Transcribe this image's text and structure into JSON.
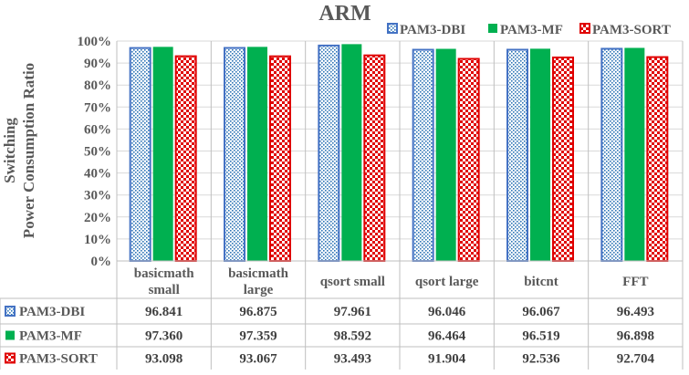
{
  "chart_data": {
    "type": "bar",
    "title": "ARM",
    "ylabel_lines": [
      "Switching",
      "Power Consumption Ratio"
    ],
    "ylim": [
      0,
      100
    ],
    "ytick_step": 10,
    "ytick_suffix": "%",
    "grid": true,
    "legend_position": "top-right",
    "categories": [
      {
        "line1": "basicmath",
        "line2": "small"
      },
      {
        "line1": "basicmath",
        "line2": "large"
      },
      {
        "line1": "qsort small",
        "line2": ""
      },
      {
        "line1": "qsort large",
        "line2": ""
      },
      {
        "line1": "bitcnt",
        "line2": ""
      },
      {
        "line1": "FFT",
        "line2": ""
      }
    ],
    "series": [
      {
        "name": "PAM3-DBI",
        "pattern": "dots",
        "color": "#4472c4",
        "fill": "#2e75b6",
        "values": [
          96.841,
          96.875,
          97.961,
          96.046,
          96.067,
          96.493
        ],
        "labels": [
          "96.841",
          "96.875",
          "97.961",
          "96.046",
          "96.067",
          "96.493"
        ]
      },
      {
        "name": "PAM3-MF",
        "pattern": "solid",
        "color": "#00b050",
        "fill": "#00b050",
        "values": [
          97.36,
          97.359,
          98.592,
          96.464,
          96.519,
          96.898
        ],
        "labels": [
          "97.360",
          "97.359",
          "98.592",
          "96.464",
          "96.519",
          "96.898"
        ]
      },
      {
        "name": "PAM3-SORT",
        "pattern": "checker",
        "color": "#e00000",
        "fill": "#e00000",
        "values": [
          93.098,
          93.067,
          93.493,
          91.904,
          92.536,
          92.704
        ],
        "labels": [
          "93.098",
          "93.067",
          "93.493",
          "91.904",
          "92.536",
          "92.704"
        ]
      }
    ]
  }
}
